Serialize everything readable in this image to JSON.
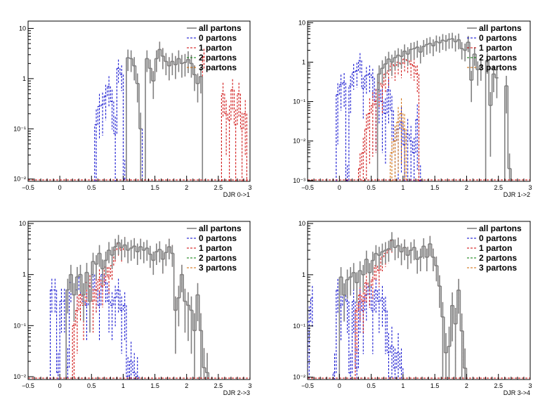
{
  "figure": {
    "background": "#ffffff"
  },
  "chart_data": [
    {
      "type": "line",
      "xlabel": "DJR 0->1",
      "xlim": [
        -0.5,
        3
      ],
      "ylim": [
        0.009,
        14
      ],
      "ylog": true,
      "xticks": [
        -0.5,
        0,
        0.5,
        1,
        1.5,
        2,
        2.5,
        3
      ],
      "xtick_labels": [
        "−0.5",
        "0",
        "0.5",
        "1",
        "1.5",
        "2",
        "2.5",
        "3"
      ],
      "yticks": [
        0.01,
        0.1,
        1,
        10
      ],
      "ytick_labels": [
        "10⁻²",
        "10⁻¹",
        "1",
        "10"
      ],
      "legend": {
        "placement": "top-right",
        "entries": [
          "all partons",
          "0 partons",
          "1 parton",
          "2 partons",
          "3 partons"
        ]
      },
      "series": [
        {
          "name": "all partons",
          "color": "#808080",
          "style": "solid",
          "x": [
            1.05,
            1.1,
            1.15,
            1.2,
            1.25,
            1.35,
            1.4,
            1.45,
            1.5,
            1.55,
            1.6,
            1.65,
            1.7,
            1.75,
            1.8,
            1.85,
            1.9,
            1.95,
            2.0,
            2.05,
            2.1,
            2.15,
            2.2
          ],
          "values": [
            2.6,
            2.5,
            1.8,
            0.8,
            0.1,
            2.5,
            1.6,
            0.9,
            2.5,
            3.8,
            2.8,
            2.2,
            1.8,
            2.2,
            1.9,
            2.5,
            2.0,
            2.1,
            2.4,
            2.0,
            1.2,
            0.8,
            1.1
          ]
        },
        {
          "name": "0 partons",
          "color": "#0000cc",
          "style": "dashed",
          "x": [
            0.55,
            0.6,
            0.65,
            0.7,
            0.75,
            0.8,
            0.85,
            0.9,
            0.95,
            1.0,
            1.05,
            1.1,
            1.15,
            1.2,
            1.25
          ],
          "values": [
            0.12,
            0.28,
            0.3,
            0.45,
            0.7,
            0.35,
            0.08,
            1.6,
            1.2,
            0.01,
            2.6,
            2.5,
            1.8,
            0.8,
            0.1
          ]
        },
        {
          "name": "1 parton",
          "color": "#cc0000",
          "style": "dashed",
          "x": [
            1.35,
            1.4,
            1.45,
            1.5,
            1.55,
            1.6,
            1.65,
            1.7,
            1.75,
            1.8,
            1.85,
            1.9,
            1.95,
            2.0,
            2.05,
            2.1,
            2.15,
            2.2,
            2.25,
            2.55,
            2.6,
            2.65,
            2.7,
            2.75,
            2.8,
            2.85,
            2.9
          ],
          "values": [
            2.5,
            1.6,
            0.9,
            2.5,
            3.8,
            2.8,
            2.2,
            1.8,
            2.2,
            1.9,
            2.5,
            2.0,
            2.1,
            2.4,
            2.0,
            1.2,
            0.8,
            1.1,
            2.7,
            0.5,
            0.2,
            0.15,
            0.6,
            0.12,
            0.5,
            0.1,
            0.2
          ]
        },
        {
          "name": "2 partons",
          "color": "#007700",
          "style": "dashed",
          "x": [],
          "values": []
        },
        {
          "name": "3 partons",
          "color": "#cc6600",
          "style": "dashed",
          "x": [],
          "values": []
        }
      ]
    },
    {
      "type": "line",
      "xlabel": "DJR 1->2",
      "xlim": [
        -0.5,
        3
      ],
      "ylim": [
        0.00095,
        11
      ],
      "ylog": true,
      "xticks": [
        -0.5,
        0,
        0.5,
        1,
        1.5,
        2,
        2.5,
        3
      ],
      "xtick_labels": [
        "−0.5",
        "0",
        "0.5",
        "1",
        "1.5",
        "2",
        "2.5",
        "3"
      ],
      "yticks": [
        0.001,
        0.01,
        0.1,
        1,
        10
      ],
      "ytick_labels": [
        "10⁻³",
        "10⁻²",
        "10⁻¹",
        "1",
        "10"
      ],
      "legend": {
        "placement": "top-right",
        "entries": [
          "all partons",
          "0 partons",
          "1 parton",
          "2 partons",
          "3 partons"
        ]
      },
      "series": [
        {
          "name": "all partons",
          "color": "#808080",
          "style": "solid",
          "x": [
            0.6,
            0.65,
            0.7,
            0.75,
            0.8,
            0.85,
            0.9,
            0.95,
            1.0,
            1.05,
            1.1,
            1.15,
            1.2,
            1.25,
            1.3,
            1.35,
            1.4,
            1.45,
            1.5,
            1.55,
            1.6,
            1.65,
            1.7,
            1.75,
            1.8,
            1.85,
            1.9,
            1.95,
            2.0,
            2.05,
            2.1,
            2.15,
            2.2,
            2.3,
            2.35,
            2.4,
            2.45,
            2.6,
            2.65
          ],
          "values": [
            0.5,
            0.7,
            0.9,
            1.2,
            1.0,
            1.3,
            1.5,
            1.4,
            1.9,
            1.6,
            2.1,
            2.2,
            2.4,
            1.8,
            2.5,
            2.8,
            3.0,
            2.6,
            3.3,
            3.1,
            3.6,
            3.4,
            3.8,
            3.9,
            3.3,
            3.7,
            2.2,
            2.0,
            3.2,
            0.35,
            1.6,
            0.65,
            0.8,
            1.1,
            0.08,
            0.5,
            0.4,
            0.25,
            0.002
          ]
        },
        {
          "name": "0 partons",
          "color": "#0000cc",
          "style": "dashed",
          "x": [
            -0.05,
            0.0,
            0.05,
            0.1,
            0.15,
            0.2,
            0.25,
            0.3,
            0.35,
            0.4,
            0.45,
            0.5,
            0.55,
            0.6,
            0.65,
            0.7,
            0.75,
            0.8,
            0.85,
            0.9,
            0.95,
            1.0,
            1.05,
            1.1,
            1.15,
            1.2,
            1.25
          ],
          "values": [
            0.15,
            0.27,
            0.3,
            0.001,
            0.25,
            0.55,
            0.6,
            1.1,
            0.22,
            0.45,
            0.5,
            0.4,
            0.1,
            0.2,
            0.1,
            0.05,
            0.2,
            0.06,
            0.01,
            0.02,
            0.03,
            0.008,
            0.015,
            0.01,
            0.005,
            0.035,
            0.001
          ]
        },
        {
          "name": "1 parton",
          "color": "#cc0000",
          "style": "dashed",
          "x": [
            0.3,
            0.35,
            0.4,
            0.45,
            0.5,
            0.55,
            0.6,
            0.65,
            0.7,
            0.75,
            0.8,
            0.85,
            0.9,
            0.95,
            1.0,
            1.05,
            1.1,
            1.15,
            1.2
          ],
          "values": [
            0.002,
            0.005,
            0.02,
            0.05,
            0.08,
            0.1,
            0.3,
            0.25,
            0.5,
            0.6,
            0.9,
            0.8,
            1.0,
            0.9,
            1.2,
            1.1,
            0.9,
            0.8,
            0.5
          ]
        },
        {
          "name": "2 partons",
          "color": "#007700",
          "style": "dashed",
          "x": [],
          "values": []
        },
        {
          "name": "3 partons",
          "color": "#cc6600",
          "style": "dashed",
          "x": [
            0.8,
            0.85,
            0.9,
            0.95,
            1.0
          ],
          "values": [
            0.005,
            0.01,
            0.03,
            0.05,
            0.02
          ]
        }
      ]
    },
    {
      "type": "line",
      "xlabel": "DJR 2->3",
      "xlim": [
        -0.5,
        3
      ],
      "ylim": [
        0.0088,
        11
      ],
      "ylog": true,
      "xticks": [
        -0.5,
        0,
        0.5,
        1,
        1.5,
        2,
        2.5,
        3
      ],
      "xtick_labels": [
        "−0.5",
        "0",
        "0.5",
        "1",
        "1.5",
        "2",
        "2.5",
        "3"
      ],
      "yticks": [
        0.01,
        0.1,
        1,
        10
      ],
      "ytick_labels": [
        "10⁻²",
        "10⁻¹",
        "1",
        "10"
      ],
      "legend": {
        "placement": "top-right",
        "entries": [
          "all partons",
          "0 partons",
          "1 parton",
          "2 partons",
          "3 partons"
        ]
      },
      "series": [
        {
          "name": "all partons",
          "color": "#808080",
          "style": "solid",
          "x": [
            0.1,
            0.15,
            0.2,
            0.25,
            0.3,
            0.35,
            0.4,
            0.45,
            0.5,
            0.55,
            0.6,
            0.65,
            0.7,
            0.75,
            0.8,
            0.85,
            0.9,
            0.95,
            1.0,
            1.05,
            1.1,
            1.15,
            1.2,
            1.25,
            1.3,
            1.35,
            1.4,
            1.45,
            1.5,
            1.55,
            1.6,
            1.65,
            1.7,
            1.75,
            1.8,
            1.85,
            1.9,
            1.95,
            2.0,
            2.05,
            2.1,
            2.15,
            2.2,
            2.25,
            2.3
          ],
          "values": [
            0.5,
            1.0,
            0.4,
            0.9,
            1.0,
            0.4,
            1.1,
            0.3,
            1.8,
            1.6,
            2.6,
            1.3,
            1.9,
            3.0,
            2.4,
            3.5,
            4.2,
            3.4,
            3.8,
            3.0,
            3.3,
            3.6,
            2.8,
            3.5,
            3.0,
            3.3,
            2.5,
            1.9,
            2.8,
            3.1,
            2.0,
            2.7,
            3.5,
            2.6,
            0.2,
            0.35,
            1.0,
            0.3,
            0.25,
            0.2,
            0.08,
            0.4,
            0.08,
            0.015,
            0.012
          ]
        },
        {
          "name": "0 partons",
          "color": "#0000cc",
          "style": "dashed",
          "x": [
            -0.15,
            -0.1,
            -0.05,
            0.0,
            0.05,
            0.1,
            0.15,
            0.2,
            0.25,
            0.3,
            0.35,
            0.4,
            0.45,
            0.5,
            0.55,
            0.6,
            0.65,
            0.7,
            0.75,
            0.8,
            0.85,
            0.9,
            0.95,
            1.0,
            1.05,
            1.1,
            1.15,
            1.2
          ],
          "values": [
            0.5,
            0.5,
            0.012,
            0.3,
            0.3,
            0.015,
            0.7,
            0.4,
            0.5,
            0.9,
            0.3,
            0.25,
            0.6,
            1.0,
            0.5,
            0.25,
            1.0,
            0.7,
            0.3,
            0.25,
            0.35,
            0.5,
            0.2,
            0.25,
            0.01,
            0.02,
            0.012,
            0.01
          ]
        },
        {
          "name": "1 parton",
          "color": "#cc0000",
          "style": "dashed",
          "x": [
            0.2,
            0.25,
            0.3,
            0.35,
            0.4,
            0.45,
            0.5,
            0.55,
            0.6,
            0.65,
            0.7,
            0.75,
            0.8,
            0.85,
            0.9,
            0.95,
            1.0,
            1.05,
            1.1,
            1.15,
            1.2,
            1.25,
            1.3,
            1.35,
            1.4,
            1.45,
            1.5,
            1.55,
            1.6,
            1.65,
            1.7,
            1.75,
            1.8,
            1.85,
            1.9,
            1.95,
            2.0,
            2.05,
            2.1,
            2.15,
            2.2,
            2.25,
            2.3
          ],
          "values": [
            0.1,
            0.2,
            0.4,
            0.25,
            0.7,
            0.6,
            0.3,
            0.5,
            0.8,
            0.6,
            1.4,
            0.9,
            1.5,
            3.0,
            4.0,
            3.0,
            3.8,
            3.0,
            3.3,
            3.6,
            2.8,
            3.5,
            3.0,
            3.3,
            2.5,
            1.9,
            2.8,
            3.1,
            2.0,
            2.7,
            3.5,
            2.6,
            0.2,
            0.35,
            1.0,
            0.3,
            0.25,
            0.2,
            0.08,
            0.4,
            0.08,
            0.015,
            0.012
          ]
        },
        {
          "name": "2 partons",
          "color": "#007700",
          "style": "dashed",
          "x": [],
          "values": []
        },
        {
          "name": "3 partons",
          "color": "#cc6600",
          "style": "dashed",
          "x": [],
          "values": []
        }
      ]
    },
    {
      "type": "line",
      "xlabel": "DJR 3->4",
      "xlim": [
        -0.5,
        3
      ],
      "ylim": [
        0.009,
        11
      ],
      "ylog": true,
      "xticks": [
        -0.5,
        0,
        0.5,
        1,
        1.5,
        2,
        2.5,
        3
      ],
      "xtick_labels": [
        "−0.5",
        "0",
        "0.5",
        "1",
        "1.5",
        "2",
        "2.5",
        "3"
      ],
      "yticks": [
        0.01,
        0.1,
        1,
        10
      ],
      "ytick_labels": [
        "10⁻²",
        "10⁻¹",
        "1",
        "10"
      ],
      "legend": {
        "placement": "top-right",
        "entries": [
          "all partons",
          "0 partons",
          "1 parton",
          "2 partons",
          "3 partons"
        ]
      },
      "series": [
        {
          "name": "all partons",
          "color": "#808080",
          "style": "solid",
          "x": [
            0.0,
            0.05,
            0.1,
            0.15,
            0.2,
            0.25,
            0.3,
            0.35,
            0.4,
            0.45,
            0.5,
            0.55,
            0.6,
            0.65,
            0.7,
            0.75,
            0.8,
            0.85,
            0.9,
            0.95,
            1.0,
            1.05,
            1.1,
            1.15,
            1.2,
            1.25,
            1.3,
            1.35,
            1.4,
            1.45,
            1.5,
            1.55,
            1.6,
            1.65,
            1.7,
            1.75,
            1.8,
            1.85,
            1.9,
            1.95
          ],
          "values": [
            0.9,
            0.4,
            0.8,
            0.9,
            1.1,
            0.7,
            1.2,
            1.0,
            2.0,
            1.1,
            1.9,
            2.6,
            2.4,
            2.8,
            3.0,
            3.2,
            4.8,
            3.4,
            3.7,
            2.8,
            3.4,
            2.4,
            3.0,
            3.4,
            2.0,
            2.2,
            3.6,
            2.2,
            4.0,
            2.2,
            1.5,
            0.6,
            0.15,
            0.03,
            0.04,
            0.25,
            0.11,
            0.5,
            0.08,
            0.015
          ]
        },
        {
          "name": "0 partons",
          "color": "#0000cc",
          "style": "dashed",
          "x": [
            -0.5,
            -0.45,
            -0.1,
            -0.05,
            0.0,
            0.05,
            0.1,
            0.15,
            0.2,
            0.25,
            0.3,
            0.35,
            0.4,
            0.45,
            0.5,
            0.55,
            0.6,
            0.65,
            0.7,
            0.75,
            0.8,
            0.85,
            0.9,
            0.95
          ],
          "values": [
            0.12,
            0.35,
            0.012,
            0.5,
            0.25,
            0.4,
            0.3,
            0.012,
            0.3,
            0.015,
            0.3,
            0.2,
            0.4,
            0.6,
            0.2,
            0.5,
            0.3,
            0.35,
            0.2,
            0.03,
            0.04,
            0.015,
            0.03,
            0.015
          ]
        },
        {
          "name": "1 parton",
          "color": "#cc0000",
          "style": "dashed",
          "x": [
            0.25,
            0.3,
            0.35,
            0.4,
            0.45,
            0.5,
            0.55,
            0.6,
            0.65,
            0.7,
            0.75,
            0.8,
            0.85,
            0.9,
            0.95,
            1.0,
            1.05,
            1.1,
            1.15,
            1.2,
            1.25,
            1.3,
            1.35,
            1.4,
            1.45,
            1.5,
            1.55,
            1.6,
            1.65,
            1.7,
            1.75,
            1.8,
            1.85,
            1.9,
            1.95
          ],
          "values": [
            0.2,
            0.4,
            0.3,
            0.7,
            0.6,
            0.8,
            1.5,
            1.2,
            2.2,
            2.6,
            3.0,
            4.6,
            3.4,
            3.7,
            2.8,
            3.4,
            2.4,
            3.0,
            3.4,
            2.0,
            2.2,
            3.6,
            2.2,
            4.0,
            2.2,
            1.5,
            0.6,
            0.15,
            0.03,
            0.04,
            0.25,
            0.11,
            0.5,
            0.08,
            0.015
          ]
        },
        {
          "name": "2 partons",
          "color": "#007700",
          "style": "dashed",
          "x": [],
          "values": []
        },
        {
          "name": "3 partons",
          "color": "#cc6600",
          "style": "dashed",
          "x": [],
          "values": []
        }
      ]
    }
  ]
}
